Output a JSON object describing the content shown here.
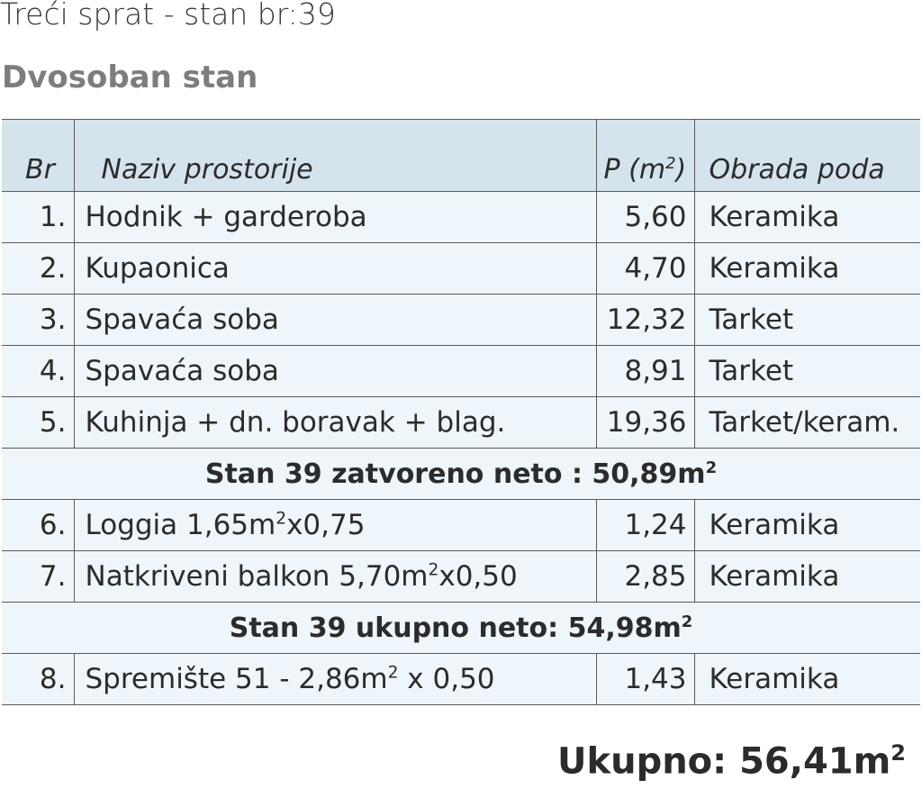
{
  "title": "Treći sprat - stan br:39",
  "subtitle": "Dvosoban stan",
  "table": {
    "headers": {
      "br": "Br",
      "name": "Naziv prostorije",
      "area": "P (m",
      "area_sup": "2",
      "area_close": ")",
      "floor": "Obrada poda"
    },
    "rows": [
      {
        "br": "1.",
        "name": "Hodnik + garderoba",
        "area": "5,60",
        "floor": "Keramika"
      },
      {
        "br": "2.",
        "name": "Kupaonica",
        "area": "4,70",
        "floor": "Keramika"
      },
      {
        "br": "3.",
        "name": "Spavaća soba",
        "area": "12,32",
        "floor": "Tarket"
      },
      {
        "br": "4.",
        "name": "Spavaća soba",
        "area": "8,91",
        "floor": "Tarket"
      },
      {
        "br": "5.",
        "name": "Kuhinja + dn. boravak + blag.",
        "area": "19,36",
        "floor": "Tarket/keram."
      },
      {
        "sum": "Stan 39 zatvoreno neto : 50,89m",
        "sup": "2"
      },
      {
        "br": "6.",
        "name": "Loggia 1,65m",
        "name_sup": "2",
        "name_rest": "x0,75",
        "area": "1,24",
        "floor": "Keramika"
      },
      {
        "br": "7.",
        "name": "Natkriveni balkon 5,70m",
        "name_sup": "2",
        "name_rest": "x0,50",
        "area": "2,85",
        "floor": "Keramika"
      },
      {
        "sum": "Stan 39 ukupno neto: 54,98m",
        "sup": "2"
      },
      {
        "br": "8.",
        "name": "Spremište 51 - 2,86m",
        "name_sup": "2",
        "name_rest": " x 0,50",
        "area": "1,43",
        "floor": "Keramika"
      }
    ]
  },
  "total": {
    "text": "Ukupno: 56,41m",
    "sup": "2"
  }
}
